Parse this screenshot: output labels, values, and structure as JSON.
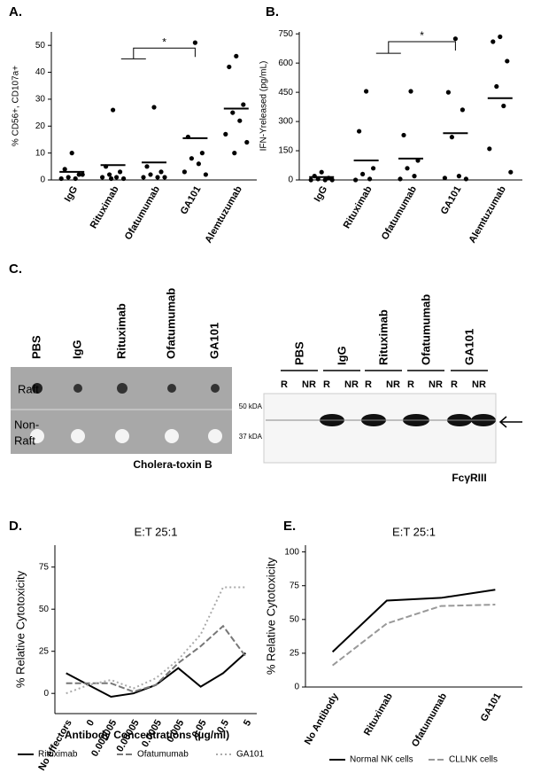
{
  "chart_data": [
    {
      "type": "strip",
      "panel": "A.",
      "ylabel": "% CD56+, CD107a+",
      "annotation": "*",
      "categories": [
        "IgG",
        "Rituximab",
        "Ofatumumab",
        "GA101",
        "Alemtuzumab"
      ],
      "values": [
        [
          10,
          4,
          2,
          1,
          0.5,
          0.5,
          2
        ],
        [
          26,
          5,
          3,
          2,
          1,
          1,
          0.5,
          0.5
        ],
        [
          27,
          5,
          3,
          2,
          1,
          1,
          1
        ],
        [
          51,
          16,
          10,
          8,
          6,
          3,
          2
        ],
        [
          46,
          42,
          28,
          25,
          22,
          17,
          14,
          10
        ]
      ],
      "means": [
        3,
        5.5,
        6.5,
        15.5,
        26.5
      ],
      "color": "#000000",
      "ylim": [
        0,
        55
      ],
      "yticks": [
        0,
        10,
        20,
        30,
        40,
        50
      ]
    },
    {
      "type": "strip",
      "panel": "B.",
      "ylabel": "IFN-Υreleased (pg/mL)",
      "annotation": "*",
      "categories": [
        "IgG",
        "Rituximab",
        "Ofatumumab",
        "GA101",
        "Alemtuzumab"
      ],
      "values": [
        [
          40,
          20,
          10,
          5,
          0,
          0,
          0
        ],
        [
          455,
          250,
          60,
          30,
          5,
          0
        ],
        [
          455,
          230,
          100,
          60,
          20,
          5
        ],
        [
          725,
          450,
          360,
          220,
          20,
          10,
          5
        ],
        [
          735,
          710,
          610,
          480,
          380,
          160,
          40
        ]
      ],
      "means": [
        15,
        100,
        110,
        240,
        420
      ],
      "color": "#000000",
      "ylim": [
        0,
        760
      ],
      "yticks": [
        0,
        150,
        300,
        450,
        600,
        750
      ]
    },
    {
      "type": "line",
      "panel": "D.",
      "title": "E:T 25:1",
      "ylabel": "% Relative Cytotoxicity",
      "xlabel": "Antibody Concentrations (µg/ml)",
      "categories": [
        "No effectors",
        "0",
        "0.000005",
        "0.00005",
        "0.0005",
        "0.005",
        "0.05",
        "0.5",
        "5"
      ],
      "series": [
        {
          "name": "Rituximab",
          "color": "#000000",
          "values": [
            12,
            5,
            -2,
            0,
            5,
            15,
            4,
            12,
            24
          ]
        },
        {
          "name": "Ofatumumab",
          "color": "#777777",
          "values": [
            6,
            6,
            6,
            1,
            5,
            18,
            28,
            40,
            22
          ]
        },
        {
          "name": "GA101",
          "color": "#aaaaaa",
          "values": [
            0,
            5,
            8,
            3,
            9,
            20,
            35,
            63,
            63
          ]
        }
      ],
      "ylim": [
        -12,
        88
      ],
      "yticks": [
        0,
        25,
        50,
        75
      ]
    },
    {
      "type": "line",
      "panel": "E.",
      "title": "E:T 25:1",
      "ylabel": "% Relative Cytotoxicity",
      "categories": [
        "No Antibody",
        "Rituximab",
        "Ofatumumab",
        "GA101"
      ],
      "series": [
        {
          "name": "Normal NK cells",
          "color": "#000000",
          "values": [
            26,
            64,
            66,
            72
          ]
        },
        {
          "name": "CLLNK cells",
          "color": "#999999",
          "values": [
            16,
            47,
            60,
            61
          ]
        }
      ],
      "ylim": [
        0,
        105
      ],
      "yticks": [
        0,
        25,
        50,
        75,
        100
      ]
    }
  ],
  "blot": {
    "panel": "C.",
    "lanes": [
      "PBS",
      "IgG",
      "Rituximab",
      "Ofatumumab",
      "GA101"
    ],
    "raft": "Raft",
    "non_raft": [
      "Non-",
      "Raft"
    ],
    "left_caption": "Cholera-toxin B",
    "sub_lanes": [
      "R",
      "NR"
    ],
    "markers": [
      "50 kDA",
      "37 kDA"
    ],
    "right_caption": "FcγRIII"
  }
}
